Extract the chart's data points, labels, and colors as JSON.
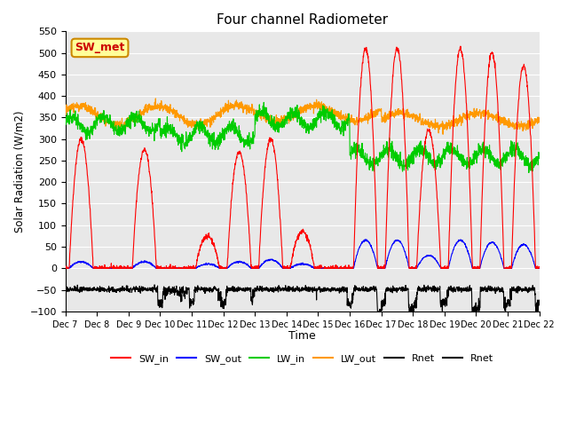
{
  "title": "Four channel Radiometer",
  "xlabel": "Time",
  "ylabel": "Solar Radiation (W/m2)",
  "ylim": [
    -100,
    550
  ],
  "xlim": [
    0,
    15
  ],
  "background_color": "#e8e8e8",
  "annotation_text": "SW_met",
  "annotation_color": "#cc0000",
  "annotation_bg": "#ffff99",
  "annotation_border": "#cc8800",
  "x_tick_labels": [
    "Dec 7",
    "Dec 8",
    "Dec 9",
    "Dec 10",
    "Dec 11",
    "Dec 12",
    "Dec 13",
    "Dec 14",
    "Dec 15",
    "Dec 16",
    "Dec 17",
    "Dec 18",
    "Dec 19",
    "Dec 20",
    "Dec 21",
    "Dec 22"
  ],
  "x_tick_pos": [
    0,
    1,
    2,
    3,
    4,
    5,
    6,
    7,
    8,
    9,
    10,
    11,
    12,
    13,
    14,
    15
  ],
  "yticks": [
    -100,
    -50,
    0,
    50,
    100,
    150,
    200,
    250,
    300,
    350,
    400,
    450,
    500,
    550
  ],
  "sw_in_color": "#ff0000",
  "sw_out_color": "#0000ff",
  "lw_in_color": "#00cc00",
  "lw_out_color": "#ff9900",
  "rnet_color": "#000000",
  "legend_labels": [
    "SW_in",
    "SW_out",
    "LW_in",
    "LW_out",
    "Rnet",
    "Rnet"
  ]
}
